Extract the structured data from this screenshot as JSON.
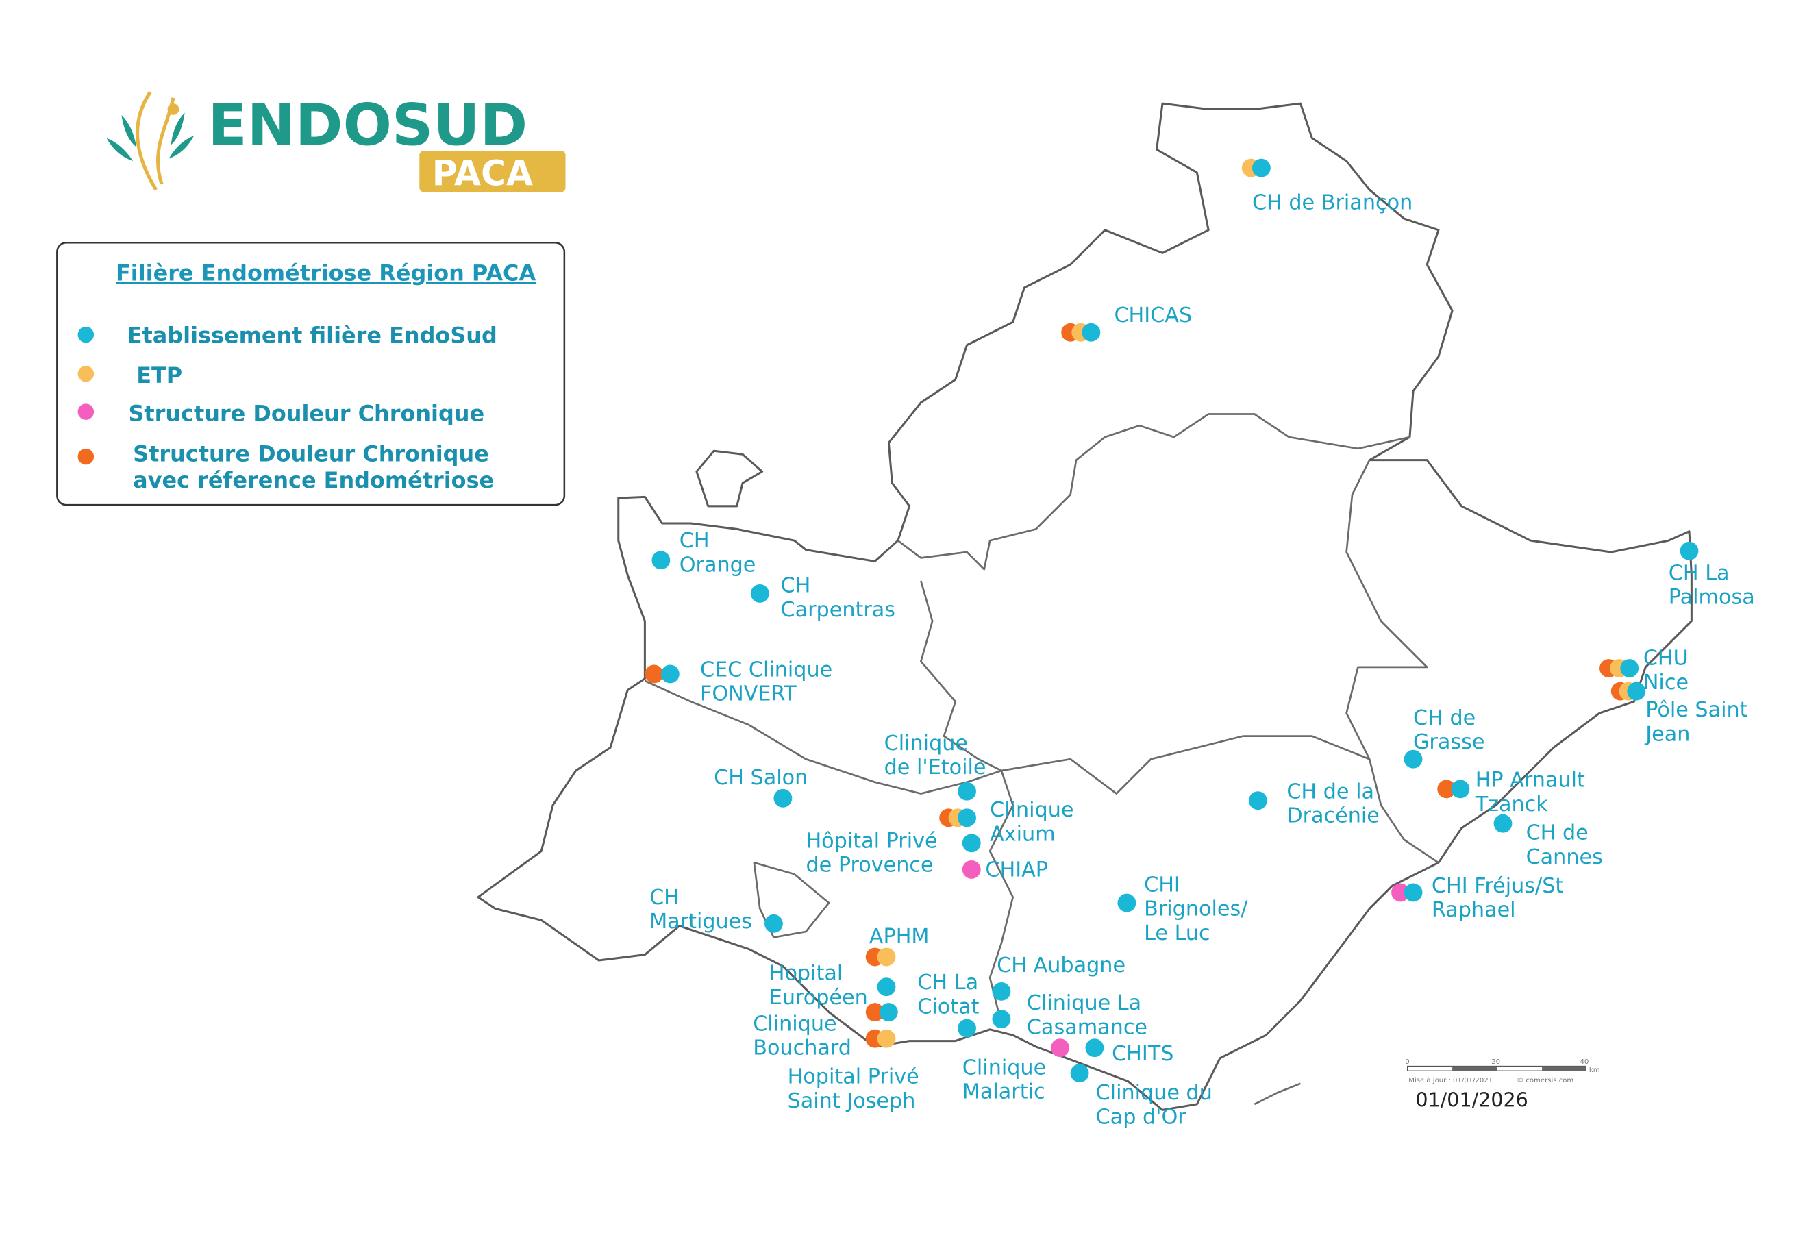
{
  "logo": {
    "main": "ENDOSUD",
    "sub": "PACA"
  },
  "legend": {
    "title": "Filière Endométriose Région PACA",
    "items": [
      {
        "label": "Etablissement filière EndoSud",
        "color": "#1ab8d6"
      },
      {
        "label": "ETP",
        "color": "#f9bd5a"
      },
      {
        "label": "Structure Douleur Chronique",
        "color": "#f45fbf"
      },
      {
        "label_line1": "Structure Douleur Chronique",
        "label_line2": "avec réference Endométriose",
        "color": "#f26a1f"
      }
    ]
  },
  "colors": {
    "filiere": "#1ab8d6",
    "etp": "#f9bd5a",
    "douleur": "#f45fbf",
    "douleur_endo": "#f26a1f",
    "label": "#1aa3c4"
  },
  "sites": [
    {
      "id": "briancon",
      "lines": [
        "CH de Briançon"
      ],
      "markers": [
        "etp",
        "filiere"
      ]
    },
    {
      "id": "chicas",
      "lines": [
        "CHICAS"
      ],
      "markers": [
        "douleur_endo",
        "etp",
        "filiere"
      ]
    },
    {
      "id": "orange",
      "lines": [
        "CH",
        "Orange"
      ],
      "markers": [
        "filiere"
      ]
    },
    {
      "id": "carpentras",
      "lines": [
        "CH",
        "Carpentras"
      ],
      "markers": [
        "filiere"
      ]
    },
    {
      "id": "fonvert",
      "lines": [
        "CEC Clinique",
        "FONVERT"
      ],
      "markers": [
        "douleur_endo",
        "filiere"
      ]
    },
    {
      "id": "etoile",
      "lines": [
        "Clinique",
        "de l'Etoile"
      ],
      "markers": [
        "filiere"
      ]
    },
    {
      "id": "salon",
      "lines": [
        "CH Salon"
      ],
      "markers": [
        "filiere"
      ]
    },
    {
      "id": "axium",
      "lines": [
        "Clinique",
        "Axium"
      ],
      "markers": [
        "douleur_endo",
        "etp",
        "filiere"
      ]
    },
    {
      "id": "hpprovence",
      "lines": [
        "Hôpital Privé",
        "de Provence"
      ],
      "markers": [
        "filiere"
      ]
    },
    {
      "id": "chiap",
      "lines": [
        "CHIAP"
      ],
      "markers": [
        "douleur"
      ]
    },
    {
      "id": "dracenie",
      "lines": [
        "CH de la",
        "Dracénie"
      ],
      "markers": [
        "filiere"
      ]
    },
    {
      "id": "grasse",
      "lines": [
        "CH de",
        "Grasse"
      ],
      "markers": [
        "filiere"
      ]
    },
    {
      "id": "tzanck",
      "lines": [
        "HP Arnault",
        "Tzanck"
      ],
      "markers": [
        "douleur_endo",
        "filiere"
      ]
    },
    {
      "id": "cannes",
      "lines": [
        "CH de",
        "Cannes"
      ],
      "markers": [
        "filiere"
      ]
    },
    {
      "id": "nice",
      "lines": [
        "CHU",
        "Nice"
      ],
      "markers": [
        "douleur_endo",
        "etp",
        "filiere"
      ]
    },
    {
      "id": "stjean",
      "lines": [
        "Pôle Saint",
        "Jean"
      ],
      "markers": [
        "douleur_endo",
        "etp",
        "filiere"
      ]
    },
    {
      "id": "palmosa",
      "lines": [
        "CH La",
        "Palmosa"
      ],
      "markers": [
        "filiere"
      ]
    },
    {
      "id": "frejus",
      "lines": [
        "CHI Fréjus/St",
        "Raphael"
      ],
      "markers": [
        "douleur",
        "filiere"
      ]
    },
    {
      "id": "brignoles",
      "lines": [
        "CHI",
        "Brignoles/",
        "Le Luc"
      ],
      "markers": [
        "filiere"
      ]
    },
    {
      "id": "martigues",
      "lines": [
        "CH",
        "Martigues"
      ],
      "markers": [
        "filiere"
      ]
    },
    {
      "id": "aphm",
      "lines": [
        "APHM"
      ],
      "markers": [
        "douleur_endo",
        "etp"
      ]
    },
    {
      "id": "europeen",
      "lines": [
        "Hopital",
        "Européen"
      ],
      "markers": [
        "filiere"
      ]
    },
    {
      "id": "bouchard",
      "lines": [
        "Clinique",
        "Bouchard"
      ],
      "markers": [
        "douleur_endo",
        "filiere"
      ]
    },
    {
      "id": "stjoseph",
      "lines": [
        "Hopital Privé",
        "Saint Joseph"
      ],
      "markers": [
        "douleur_endo",
        "etp"
      ]
    },
    {
      "id": "laciotat",
      "lines": [
        "CH La",
        "Ciotat"
      ],
      "markers": [
        "filiere"
      ]
    },
    {
      "id": "aubagne",
      "lines": [
        "CH Aubagne"
      ],
      "markers": [
        "filiere"
      ]
    },
    {
      "id": "casamance",
      "lines": [
        "Clinique La",
        "Casamance"
      ],
      "markers": [
        "filiere"
      ]
    },
    {
      "id": "chits",
      "lines": [
        "CHITS"
      ],
      "markers": [
        "douleur",
        "filiere"
      ]
    },
    {
      "id": "malartic",
      "lines": [
        "Clinique",
        "Malartic"
      ],
      "markers": []
    },
    {
      "id": "capdor",
      "lines": [
        "Clinique du",
        "Cap d'Or"
      ],
      "markers": [
        "filiere"
      ]
    }
  ],
  "scale_bar": {
    "ticks": [
      "0",
      "20",
      "40"
    ],
    "unit": "km",
    "note": "Mise à jour : 01/01/2021",
    "credit": "© comersis.com"
  },
  "date": "01/01/2026"
}
